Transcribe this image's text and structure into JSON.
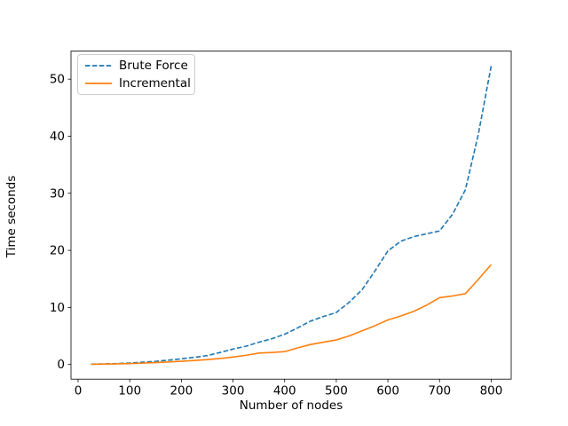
{
  "figure": {
    "background": "#ffffff",
    "axes_edge_color": "#000000",
    "legend_border_color": "#cccccc"
  },
  "chart_data": {
    "type": "line",
    "title": "",
    "xlabel": "Number of nodes",
    "ylabel": "Time seconds",
    "x": [
      25,
      50,
      75,
      100,
      125,
      150,
      175,
      200,
      225,
      250,
      275,
      300,
      325,
      350,
      375,
      400,
      425,
      450,
      475,
      500,
      525,
      550,
      575,
      600,
      625,
      650,
      675,
      700,
      725,
      750,
      775,
      800
    ],
    "series": [
      {
        "name": "Brute Force",
        "color": "#1f77b4",
        "linestyle": "dashed",
        "values": [
          0.06,
          0.1,
          0.16,
          0.25,
          0.4,
          0.55,
          0.75,
          1.0,
          1.25,
          1.55,
          2.1,
          2.7,
          3.2,
          3.9,
          4.5,
          5.3,
          6.4,
          7.6,
          8.4,
          9.1,
          10.9,
          13.1,
          16.4,
          19.9,
          21.6,
          22.4,
          22.9,
          23.4,
          26.3,
          30.6,
          40.3,
          52.3
        ]
      },
      {
        "name": "Incremental",
        "color": "#ff7f0e",
        "linestyle": "solid",
        "values": [
          0.04,
          0.07,
          0.11,
          0.16,
          0.24,
          0.33,
          0.44,
          0.56,
          0.7,
          0.85,
          1.05,
          1.3,
          1.6,
          2.0,
          2.1,
          2.25,
          2.9,
          3.5,
          3.9,
          4.3,
          5.0,
          5.9,
          6.8,
          7.8,
          8.5,
          9.3,
          10.4,
          11.7,
          12.0,
          12.4,
          14.9,
          17.5
        ]
      }
    ],
    "xticks": [
      0,
      100,
      200,
      300,
      400,
      500,
      600,
      700,
      800
    ],
    "yticks": [
      0,
      10,
      20,
      30,
      40,
      50
    ],
    "xlim": [
      -13.75,
      838.75
    ],
    "ylim": [
      -2.57,
      54.91
    ],
    "grid": false,
    "legend_position": "upper left"
  }
}
